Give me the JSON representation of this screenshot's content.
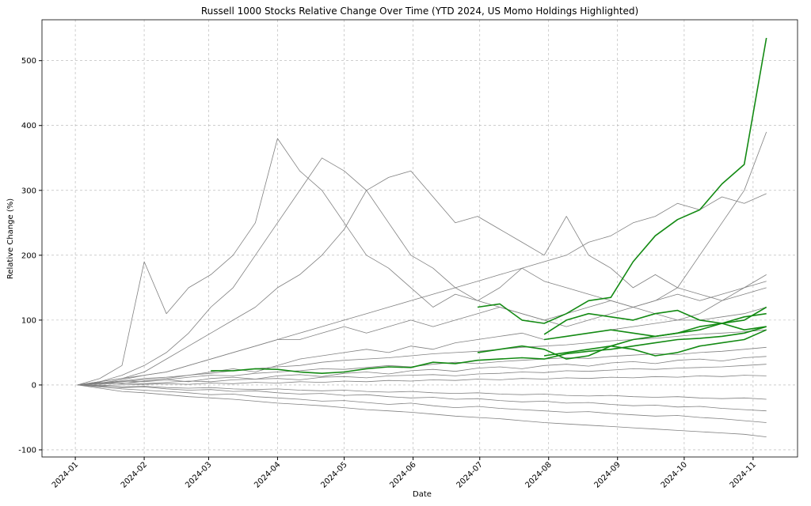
{
  "chart_data": {
    "type": "line",
    "title": "Russell 1000 Stocks Relative Change Over Time (YTD 2024, US Momo Holdings Highlighted)",
    "x_label": "Date",
    "y_label": "Relative Change (%)",
    "x": [
      1,
      11,
      21,
      31,
      41,
      51,
      61,
      71,
      81,
      91,
      101,
      111,
      121,
      131,
      141,
      151,
      161,
      171,
      181,
      191,
      201,
      211,
      221,
      231,
      241,
      251,
      261,
      271,
      281,
      291,
      301,
      311
    ],
    "xlim": [
      -15,
      325
    ],
    "xticks": [
      {
        "value": 0,
        "label": "2024-01"
      },
      {
        "value": 31,
        "label": "2024-02"
      },
      {
        "value": 60,
        "label": "2024-03"
      },
      {
        "value": 91,
        "label": "2024-04"
      },
      {
        "value": 121,
        "label": "2024-05"
      },
      {
        "value": 152,
        "label": "2024-06"
      },
      {
        "value": 182,
        "label": "2024-07"
      },
      {
        "value": 213,
        "label": "2024-08"
      },
      {
        "value": 244,
        "label": "2024-09"
      },
      {
        "value": 274,
        "label": "2024-10"
      },
      {
        "value": 305,
        "label": "2024-11"
      }
    ],
    "ylim": [
      -111,
      563
    ],
    "yticks": [
      -100,
      0,
      100,
      200,
      300,
      400,
      500
    ],
    "grid": true,
    "series": [
      {
        "color": "#808080",
        "linewidth": 0.8,
        "values": [
          0,
          10,
          30,
          190,
          110,
          150,
          170,
          200,
          250,
          380,
          330,
          300,
          250,
          200,
          180,
          150,
          120,
          140,
          130,
          120,
          110,
          100,
          90,
          100,
          110,
          120,
          130,
          150,
          200,
          250,
          300,
          390
        ]
      },
      {
        "color": "#808080",
        "linewidth": 0.8,
        "values": [
          0,
          5,
          15,
          30,
          50,
          80,
          120,
          150,
          200,
          250,
          300,
          350,
          330,
          300,
          250,
          200,
          180,
          150,
          130,
          150,
          180,
          160,
          150,
          140,
          130,
          120,
          110,
          100,
          110,
          130,
          150,
          170
        ]
      },
      {
        "color": "#808080",
        "linewidth": 0.8,
        "values": [
          0,
          5,
          10,
          20,
          40,
          60,
          80,
          100,
          120,
          150,
          170,
          200,
          240,
          300,
          320,
          330,
          290,
          250,
          260,
          240,
          220,
          200,
          260,
          200,
          180,
          150,
          170,
          150,
          140,
          130,
          140,
          150
        ]
      },
      {
        "color": "#808080",
        "linewidth": 0.8,
        "values": [
          0,
          3,
          8,
          15,
          20,
          30,
          40,
          50,
          60,
          70,
          80,
          90,
          100,
          110,
          120,
          130,
          140,
          150,
          160,
          170,
          180,
          190,
          200,
          220,
          230,
          250,
          260,
          280,
          270,
          290,
          280,
          295
        ]
      },
      {
        "color": "#808080",
        "linewidth": 0.8,
        "values": [
          0,
          5,
          10,
          15,
          20,
          30,
          40,
          50,
          60,
          70,
          70,
          80,
          90,
          80,
          90,
          100,
          90,
          100,
          110,
          120,
          110,
          100,
          110,
          120,
          130,
          120,
          130,
          140,
          130,
          140,
          150,
          160
        ]
      },
      {
        "color": "#808080",
        "linewidth": 0.8,
        "values": [
          0,
          2,
          5,
          8,
          10,
          15,
          20,
          25,
          20,
          30,
          40,
          45,
          50,
          55,
          50,
          60,
          55,
          65,
          70,
          75,
          80,
          70,
          75,
          80,
          85,
          90,
          95,
          100,
          100,
          105,
          110,
          120
        ]
      },
      {
        "color": "#808080",
        "linewidth": 0.8,
        "values": [
          0,
          3,
          6,
          10,
          12,
          15,
          18,
          22,
          25,
          28,
          30,
          35,
          38,
          40,
          42,
          45,
          48,
          50,
          52,
          55,
          58,
          60,
          62,
          65,
          68,
          70,
          72,
          75,
          78,
          80,
          82,
          85
        ]
      },
      {
        "color": "#808080",
        "linewidth": 0.8,
        "values": [
          0,
          3,
          6,
          5,
          8,
          12,
          15,
          14,
          18,
          20,
          22,
          25,
          24,
          27,
          30,
          28,
          32,
          35,
          33,
          36,
          38,
          40,
          42,
          41,
          44,
          46,
          48,
          47,
          50,
          52,
          55,
          58
        ]
      },
      {
        "color": "#808080",
        "linewidth": 0.8,
        "values": [
          0,
          1,
          3,
          2,
          4,
          6,
          5,
          8,
          9,
          10,
          8,
          12,
          13,
          11,
          14,
          15,
          16,
          14,
          17,
          18,
          20,
          19,
          22,
          21,
          23,
          25,
          24,
          26,
          27,
          28,
          30,
          32
        ]
      },
      {
        "color": "#808080",
        "linewidth": 0.8,
        "values": [
          0,
          -1,
          0,
          1,
          2,
          1,
          3,
          2,
          4,
          3,
          5,
          4,
          6,
          5,
          7,
          6,
          8,
          7,
          9,
          8,
          10,
          9,
          11,
          10,
          12,
          11,
          13,
          12,
          14,
          13,
          15,
          14
        ]
      },
      {
        "color": "#808080",
        "linewidth": 0.8,
        "values": [
          0,
          -2,
          -3,
          -2,
          -4,
          -5,
          -4,
          -6,
          -7,
          -6,
          -8,
          -9,
          -8,
          -10,
          -11,
          -10,
          -12,
          -13,
          -12,
          -14,
          -15,
          -14,
          -16,
          -17,
          -16,
          -18,
          -19,
          -18,
          -20,
          -21,
          -20,
          -22
        ]
      },
      {
        "color": "#808080",
        "linewidth": 0.8,
        "values": [
          0,
          -3,
          -6,
          -8,
          -10,
          -12,
          -15,
          -14,
          -18,
          -20,
          -22,
          -25,
          -24,
          -27,
          -30,
          -28,
          -32,
          -35,
          -33,
          -36,
          -38,
          -40,
          -42,
          -41,
          -44,
          -46,
          -48,
          -47,
          -50,
          -52,
          -55,
          -58
        ]
      },
      {
        "color": "#808080",
        "linewidth": 0.8,
        "values": [
          0,
          -5,
          -10,
          -12,
          -15,
          -18,
          -20,
          -22,
          -25,
          -28,
          -30,
          -32,
          -35,
          -38,
          -40,
          -42,
          -45,
          -48,
          -50,
          -52,
          -55,
          -58,
          -60,
          -62,
          -64,
          -66,
          -68,
          -70,
          -72,
          -74,
          -76,
          -80
        ]
      },
      {
        "color": "#808080",
        "linewidth": 0.8,
        "values": [
          0,
          4,
          2,
          6,
          8,
          5,
          10,
          12,
          9,
          14,
          16,
          13,
          18,
          20,
          17,
          22,
          24,
          21,
          26,
          28,
          25,
          30,
          32,
          29,
          34,
          36,
          33,
          38,
          40,
          37,
          42,
          44
        ]
      },
      {
        "color": "#808080",
        "linewidth": 0.8,
        "values": [
          0,
          -1,
          -4,
          -3,
          -6,
          -8,
          -7,
          -10,
          -9,
          -12,
          -14,
          -13,
          -16,
          -15,
          -18,
          -20,
          -19,
          -22,
          -21,
          -24,
          -26,
          -25,
          -28,
          -27,
          -30,
          -32,
          -31,
          -34,
          -33,
          -36,
          -38,
          -40
        ]
      },
      {
        "color": "#138a13",
        "linewidth": 1.6,
        "values": [
          null,
          null,
          null,
          null,
          null,
          null,
          22,
          22,
          25,
          24,
          20,
          18,
          20,
          25,
          28,
          27,
          35,
          33,
          38,
          40,
          42,
          40,
          48,
          52,
          55,
          60,
          65,
          70,
          72,
          75,
          80,
          90
        ]
      },
      {
        "color": "#138a13",
        "linewidth": 1.6,
        "values": [
          null,
          null,
          null,
          null,
          null,
          null,
          null,
          null,
          null,
          null,
          null,
          null,
          null,
          null,
          null,
          null,
          null,
          null,
          120,
          125,
          100,
          95,
          110,
          130,
          135,
          190,
          230,
          255,
          270,
          310,
          340,
          535
        ]
      },
      {
        "color": "#138a13",
        "linewidth": 1.6,
        "values": [
          null,
          null,
          null,
          null,
          null,
          null,
          null,
          null,
          null,
          null,
          null,
          null,
          null,
          null,
          null,
          null,
          null,
          null,
          50,
          55,
          60,
          55,
          40,
          45,
          60,
          70,
          75,
          80,
          85,
          95,
          100,
          120
        ]
      },
      {
        "color": "#138a13",
        "linewidth": 1.6,
        "values": [
          null,
          null,
          null,
          null,
          null,
          null,
          null,
          null,
          null,
          null,
          null,
          null,
          null,
          null,
          null,
          null,
          null,
          null,
          null,
          null,
          null,
          78,
          100,
          110,
          105,
          100,
          110,
          115,
          100,
          95,
          105,
          110
        ]
      },
      {
        "color": "#138a13",
        "linewidth": 1.6,
        "values": [
          null,
          null,
          null,
          null,
          null,
          null,
          null,
          null,
          null,
          null,
          null,
          null,
          null,
          null,
          null,
          null,
          null,
          null,
          null,
          null,
          null,
          45,
          50,
          55,
          60,
          55,
          45,
          50,
          60,
          65,
          70,
          85
        ]
      },
      {
        "color": "#138a13",
        "linewidth": 1.6,
        "values": [
          null,
          null,
          null,
          null,
          null,
          null,
          null,
          null,
          null,
          null,
          null,
          null,
          null,
          null,
          null,
          null,
          null,
          null,
          null,
          null,
          null,
          70,
          75,
          80,
          85,
          80,
          75,
          80,
          90,
          95,
          85,
          90
        ]
      }
    ]
  }
}
